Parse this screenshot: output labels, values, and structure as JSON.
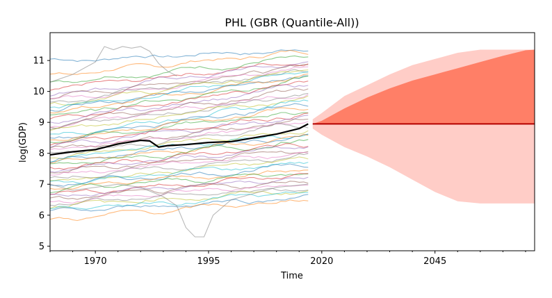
{
  "chart_data": {
    "type": "line",
    "title": "PHL (GBR (Quantile-All))",
    "xlabel": "Time",
    "ylabel": "log(GDP)",
    "xlim": [
      1960,
      2067
    ],
    "ylim": [
      4.85,
      11.9
    ],
    "x_ticks": [
      1970,
      1995,
      2020,
      2045
    ],
    "x_tick_labels": [
      "1970",
      "1995",
      "2020",
      "2045"
    ],
    "y_ticks": [
      5,
      6,
      7,
      8,
      9,
      10,
      11
    ],
    "y_tick_labels": [
      "5",
      "6",
      "7",
      "8",
      "9",
      "10",
      "11"
    ],
    "grid": false,
    "legend": "none",
    "colors": {
      "history_line": "#000000",
      "inner_band": "#ff7f67",
      "outer_band": "#ffcdc7",
      "median_line": "#b40000",
      "background_series": [
        "#1f77b4",
        "#ff7f0e",
        "#2ca02c",
        "#d62728",
        "#9467bd",
        "#8c564b",
        "#e377c2",
        "#7f7f7f",
        "#bcbd22",
        "#17becf"
      ]
    },
    "highlight_series": {
      "x": [
        1960,
        1965,
        1970,
        1975,
        1980,
        1982,
        1984,
        1986,
        1990,
        1995,
        2000,
        2005,
        2010,
        2015,
        2017
      ],
      "y": [
        7.95,
        8.05,
        8.12,
        8.3,
        8.42,
        8.4,
        8.2,
        8.25,
        8.28,
        8.35,
        8.38,
        8.5,
        8.62,
        8.8,
        8.95
      ]
    },
    "forecast": {
      "x": [
        2018,
        2020,
        2025,
        2030,
        2035,
        2040,
        2045,
        2050,
        2055,
        2060,
        2065,
        2067
      ],
      "median": [
        8.95,
        8.95,
        8.95,
        8.95,
        8.95,
        8.95,
        8.95,
        8.95,
        8.95,
        8.95,
        8.95,
        8.95
      ],
      "inner_upper": [
        8.95,
        9.05,
        9.45,
        9.8,
        10.1,
        10.35,
        10.55,
        10.75,
        10.95,
        11.15,
        11.33,
        11.35
      ],
      "inner_lower": [
        8.95,
        8.95,
        8.95,
        8.95,
        8.95,
        8.95,
        8.95,
        8.95,
        8.95,
        8.95,
        8.95,
        8.95
      ],
      "outer_upper": [
        9.1,
        9.3,
        9.85,
        10.2,
        10.55,
        10.85,
        11.05,
        11.25,
        11.35,
        11.35,
        11.35,
        11.35
      ],
      "outer_lower": [
        8.8,
        8.6,
        8.2,
        7.9,
        7.55,
        7.15,
        6.75,
        6.45,
        6.38,
        6.38,
        6.38,
        6.38
      ]
    },
    "background_series_years": [
      1960,
      2017
    ],
    "background_series": [
      {
        "start": 11.0,
        "end": 11.35
      },
      {
        "start": 10.5,
        "end": 11.3
      },
      {
        "start": 10.3,
        "end": 11.1
      },
      {
        "start": 10.05,
        "end": 11.0
      },
      {
        "start": 9.9,
        "end": 10.95
      },
      {
        "start": 9.8,
        "end": 10.85
      },
      {
        "start": 9.72,
        "end": 10.8
      },
      {
        "start": 9.65,
        "end": 10.7
      },
      {
        "start": 9.6,
        "end": 10.65
      },
      {
        "start": 9.5,
        "end": 10.6
      },
      {
        "start": 9.4,
        "end": 10.55
      },
      {
        "start": 9.3,
        "end": 10.5
      },
      {
        "start": 9.2,
        "end": 10.4
      },
      {
        "start": 9.1,
        "end": 10.3
      },
      {
        "start": 9.0,
        "end": 10.2
      },
      {
        "start": 8.9,
        "end": 10.1
      },
      {
        "start": 8.85,
        "end": 10.0
      },
      {
        "start": 8.8,
        "end": 9.9
      },
      {
        "start": 8.7,
        "end": 9.8
      },
      {
        "start": 8.6,
        "end": 9.7
      },
      {
        "start": 8.5,
        "end": 9.6
      },
      {
        "start": 8.45,
        "end": 9.5
      },
      {
        "start": 8.4,
        "end": 9.4
      },
      {
        "start": 8.3,
        "end": 9.3
      },
      {
        "start": 8.2,
        "end": 9.2
      },
      {
        "start": 8.1,
        "end": 9.1
      },
      {
        "start": 8.05,
        "end": 9.0
      },
      {
        "start": 8.0,
        "end": 8.9
      },
      {
        "start": 7.9,
        "end": 8.8
      },
      {
        "start": 7.8,
        "end": 8.7
      },
      {
        "start": 7.75,
        "end": 8.6
      },
      {
        "start": 7.7,
        "end": 8.5
      },
      {
        "start": 7.6,
        "end": 8.4
      },
      {
        "start": 7.5,
        "end": 8.3
      },
      {
        "start": 7.45,
        "end": 8.2
      },
      {
        "start": 7.4,
        "end": 8.1
      },
      {
        "start": 7.3,
        "end": 8.0
      },
      {
        "start": 7.2,
        "end": 7.9
      },
      {
        "start": 7.1,
        "end": 7.8
      },
      {
        "start": 7.05,
        "end": 7.7
      },
      {
        "start": 7.0,
        "end": 7.6
      },
      {
        "start": 6.9,
        "end": 7.5
      },
      {
        "start": 6.8,
        "end": 7.4
      },
      {
        "start": 6.7,
        "end": 7.3
      },
      {
        "start": 6.6,
        "end": 7.2
      },
      {
        "start": 6.5,
        "end": 7.1
      },
      {
        "start": 6.45,
        "end": 7.0
      },
      {
        "start": 6.4,
        "end": 6.9
      },
      {
        "start": 6.3,
        "end": 6.8
      },
      {
        "start": 6.2,
        "end": 6.7
      },
      {
        "start": 6.1,
        "end": 6.6
      },
      {
        "start": 5.85,
        "end": 6.5
      }
    ],
    "notable_series": [
      {
        "x": [
          1960,
          1965,
          1970,
          1972,
          1974,
          1976,
          1978,
          1980,
          1982,
          1984,
          1986,
          1988
        ],
        "y": [
          10.3,
          10.55,
          10.95,
          11.45,
          11.35,
          11.45,
          11.4,
          11.45,
          11.3,
          10.9,
          10.65,
          10.5
        ]
      },
      {
        "x": [
          1960,
          1965,
          1970,
          1975,
          1980,
          1985,
          1988,
          1990,
          1992,
          1994,
          1996,
          2000,
          2005,
          2010,
          2017
        ],
        "y": [
          7.0,
          6.8,
          6.9,
          7.0,
          6.9,
          6.6,
          6.3,
          5.6,
          5.3,
          5.3,
          6.0,
          6.5,
          6.7,
          6.9,
          7.0
        ]
      }
    ]
  }
}
